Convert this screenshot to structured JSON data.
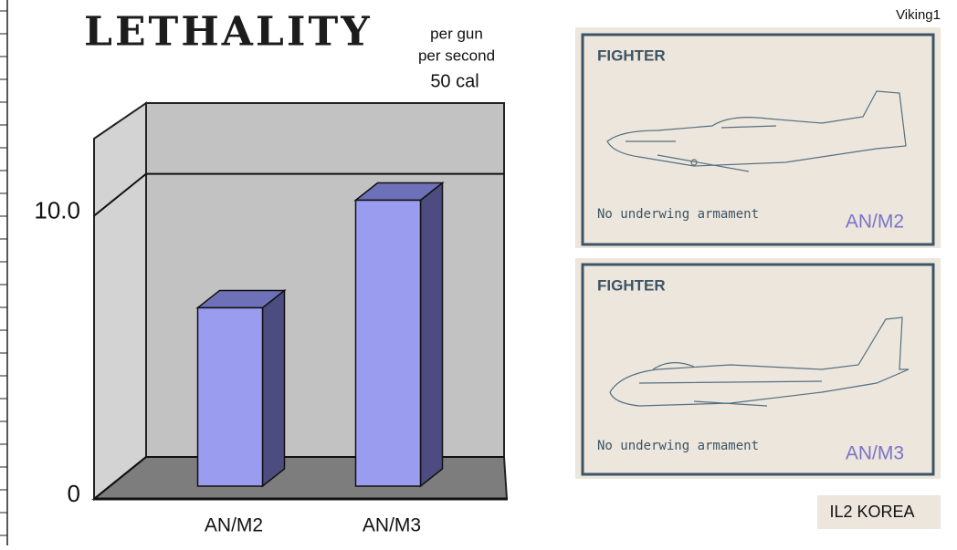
{
  "chart_data": {
    "type": "bar",
    "title": "LETHALITY",
    "annotations": [
      "per gun",
      "per second",
      "50 cal"
    ],
    "categories": [
      "AN/M2",
      "AN/M3"
    ],
    "values": [
      6.3,
      10.1
    ],
    "color": "#9a9cf0",
    "ylim": [
      0,
      12.5
    ],
    "yticks": [
      0,
      {
        "value": 10,
        "label": "10.0"
      }
    ],
    "grid": true
  },
  "header": {
    "author": "Viking1"
  },
  "cards": [
    {
      "label": "FIGHTER",
      "note": "No underwing armament",
      "weapon": "AN/M2"
    },
    {
      "label": "FIGHTER",
      "note": "No underwing armament",
      "weapon": "AN/M3"
    }
  ],
  "footer": {
    "game": "IL2 KOREA"
  }
}
